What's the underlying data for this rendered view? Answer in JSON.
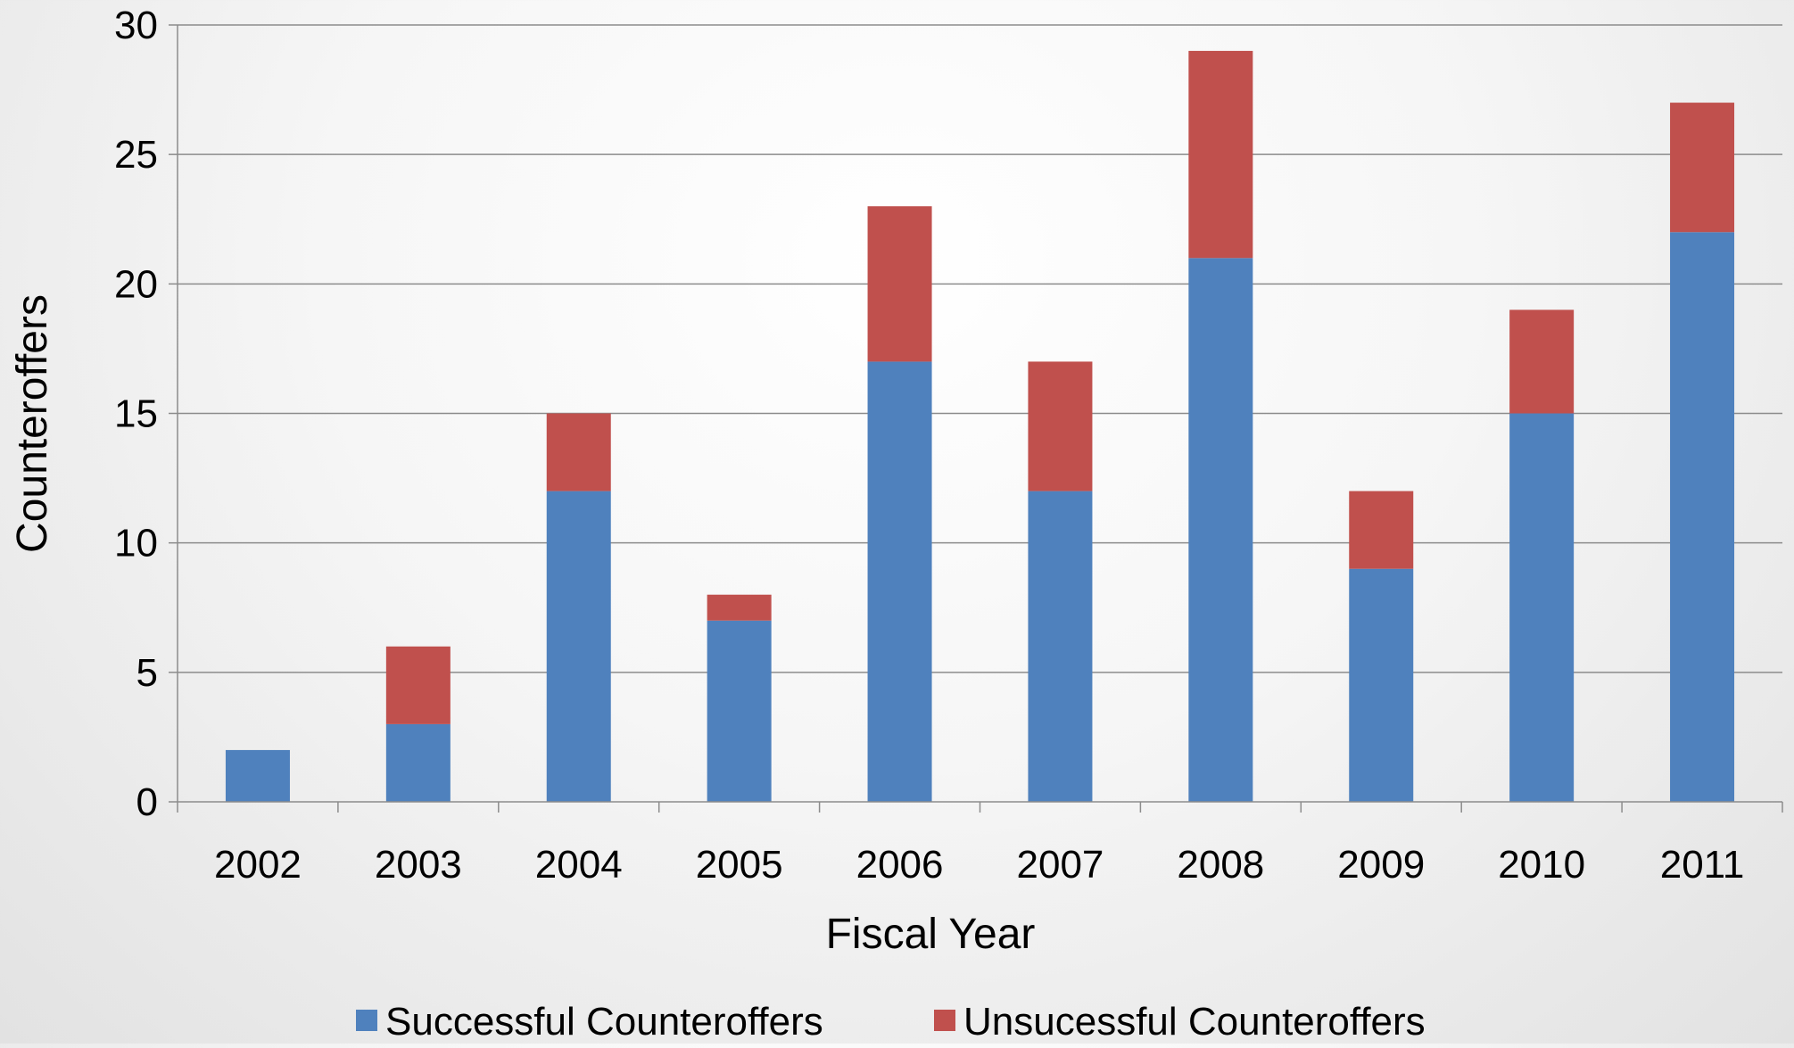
{
  "chart_data": {
    "type": "bar",
    "stacked": true,
    "title": "",
    "xlabel": "Fiscal Year",
    "ylabel": "Counteroffers",
    "categories": [
      "2002",
      "2003",
      "2004",
      "2005",
      "2006",
      "2007",
      "2008",
      "2009",
      "2010",
      "2011"
    ],
    "series": [
      {
        "name": "Successful Counteroffers",
        "color": "#4f81bd",
        "values": [
          2,
          3,
          12,
          7,
          17,
          12,
          21,
          9,
          15,
          22
        ]
      },
      {
        "name": "Unsucessful Counteroffers",
        "color": "#c0504d",
        "values": [
          0,
          3,
          3,
          1,
          6,
          5,
          8,
          3,
          4,
          5
        ]
      }
    ],
    "ylim": [
      0,
      30
    ],
    "yticks": [
      0,
      5,
      10,
      15,
      20,
      25,
      30
    ],
    "grid": true,
    "legend_position": "bottom"
  }
}
